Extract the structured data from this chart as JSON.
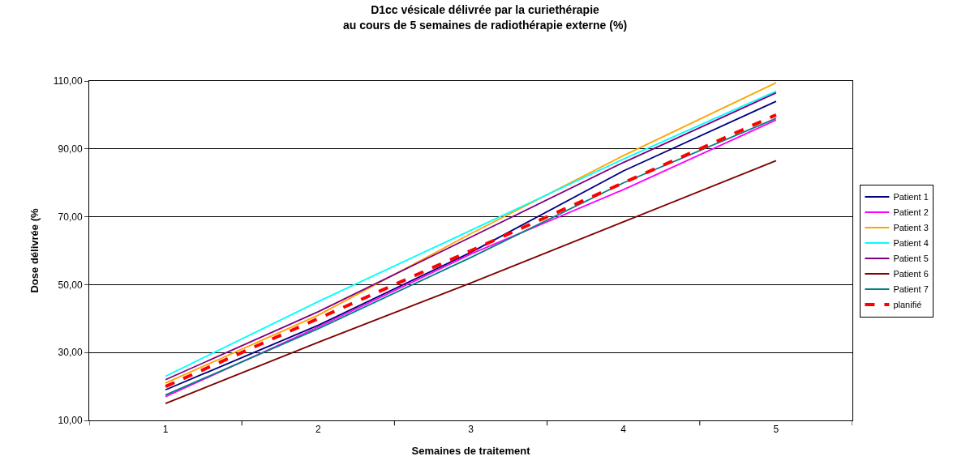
{
  "chart_data": {
    "type": "line",
    "title": "D1cc vésicale délivrée par la curiethérapie\nau cours de 5 semaines de radiothérapie externe (%)",
    "xlabel": "Semaines de traitement",
    "ylabel": "Dose délivrée (%",
    "categories": [
      "1",
      "2",
      "3",
      "4",
      "5"
    ],
    "series": [
      {
        "name": "Patient 1",
        "color": "#000080",
        "values": [
          19,
          38,
          59.5,
          83.5,
          104
        ]
      },
      {
        "name": "Patient 2",
        "color": "#ff00ff",
        "values": [
          17,
          37.5,
          59,
          78,
          98.5
        ]
      },
      {
        "name": "Patient 3",
        "color": "#ffa500",
        "values": [
          21,
          41,
          65,
          88,
          109.5
        ]
      },
      {
        "name": "Patient 4",
        "color": "#00ffff",
        "values": [
          23,
          45,
          66,
          87,
          107
        ]
      },
      {
        "name": "Patient 5",
        "color": "#800080",
        "values": [
          22,
          42,
          64,
          86,
          106.5
        ]
      },
      {
        "name": "Patient 6",
        "color": "#800000",
        "values": [
          15,
          33,
          50.5,
          68.5,
          86.5
        ]
      },
      {
        "name": "Patient 7",
        "color": "#008080",
        "values": [
          17.5,
          37,
          58,
          80,
          99
        ]
      },
      {
        "name": "planifié",
        "color": "#ff0000",
        "values": [
          20,
          40,
          60,
          80,
          100
        ],
        "line_style": "dashed"
      }
    ],
    "ylim": [
      10,
      110
    ],
    "yticks": [
      {
        "value": 10,
        "label": "10,00"
      },
      {
        "value": 30,
        "label": "30,00"
      },
      {
        "value": 50,
        "label": "50,00"
      },
      {
        "value": 70,
        "label": "70,00"
      },
      {
        "value": 90,
        "label": "90,00"
      },
      {
        "value": 110,
        "label": "110,00"
      }
    ],
    "grid": "y",
    "legend": "right",
    "marker": "none"
  }
}
